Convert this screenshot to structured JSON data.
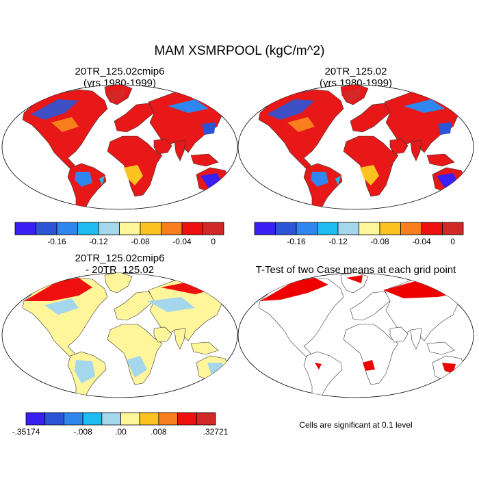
{
  "title": "MAM XSMRPOOL (kgC/m^2)",
  "panels": [
    {
      "title_line1": "20TR_125.02cmip6",
      "title_line2": "(yrs 1980-1999)"
    },
    {
      "title_line1": "20TR_125.02",
      "title_line2": "(yrs 1980-1999)"
    },
    {
      "title_line1": "20TR_125.02cmip6",
      "title_line2": "- 20TR_125.02"
    },
    {
      "title_line1": "T-Test of two Case means at each grid point",
      "title_line2": ""
    }
  ],
  "colorbar_top": {
    "colors": [
      "#3a1ff2",
      "#2b55d6",
      "#2f86ee",
      "#1fbcef",
      "#a4d6ec",
      "#fff59a",
      "#fcc21f",
      "#f97e1d",
      "#ee0f0f",
      "#d22828"
    ],
    "labels": [
      "-0.16",
      "-0.12",
      "-0.08",
      "-0.04",
      "0"
    ]
  },
  "colorbar_diff": {
    "colors": [
      "#3a1ff2",
      "#2b55d6",
      "#2f86ee",
      "#1fbcef",
      "#a4d6ec",
      "#fff59a",
      "#fcc21f",
      "#f97e1d",
      "#ee0f0f",
      "#d22828"
    ],
    "labels": [
      ".35174",
      ".008",
      ".00",
      ".008",
      ".32721"
    ],
    "label_prefixes": [
      "-",
      "-",
      "",
      "",
      ""
    ]
  },
  "note": "Cells are significant at 0.1 level",
  "colors": {
    "ocean": "#ffffff",
    "land_default": "#ee1c1c",
    "antarctica_diff": "#fff59a",
    "sig": "#ee0000"
  }
}
